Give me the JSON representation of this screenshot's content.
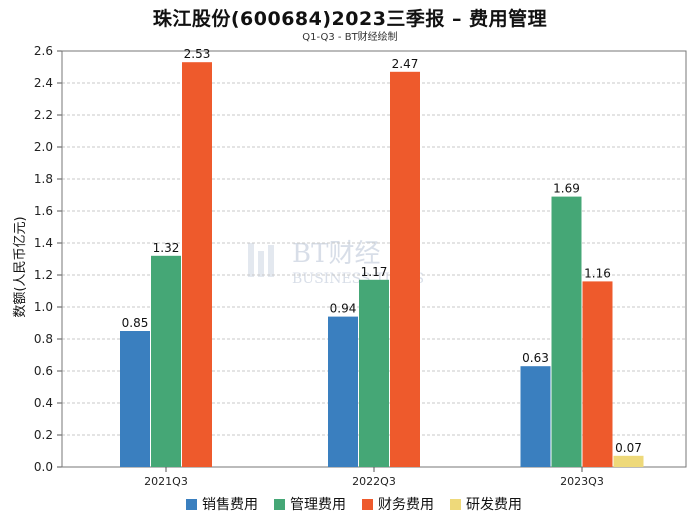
{
  "title": "珠江股份(600684)2023三季报 – 费用管理",
  "subtitle": "Q1-Q3 - BT财经绘制",
  "watermark": {
    "main": "BT财经",
    "sub": "BUSINESS TIMES"
  },
  "colors": {
    "销售费用": "#3a7fbf",
    "管理费用": "#45a776",
    "财务费用": "#ee5a2c",
    "研发费用": "#eed97a"
  },
  "chart_data": {
    "type": "bar",
    "title": "珠江股份(600684)2023三季报 – 费用管理",
    "subtitle": "Q1-Q3 - BT财经绘制",
    "xlabel": "",
    "ylabel": "数额(人民币亿元)",
    "ylim": [
      0,
      2.6
    ],
    "yticks": [
      "0.0",
      "0.2",
      "0.4",
      "0.6",
      "0.8",
      "1.0",
      "1.2",
      "1.4",
      "1.6",
      "1.8",
      "2.0",
      "2.2",
      "2.4",
      "2.6"
    ],
    "categories": [
      "2021Q3",
      "2022Q3",
      "2023Q3"
    ],
    "series": [
      {
        "name": "销售费用",
        "values": [
          0.85,
          0.94,
          0.63
        ]
      },
      {
        "name": "管理费用",
        "values": [
          1.32,
          1.17,
          1.69
        ]
      },
      {
        "name": "财务费用",
        "values": [
          2.53,
          2.47,
          1.16
        ]
      },
      {
        "name": "研发费用",
        "values": [
          null,
          null,
          0.07
        ]
      }
    ],
    "grid": true,
    "legend": "bottom"
  }
}
